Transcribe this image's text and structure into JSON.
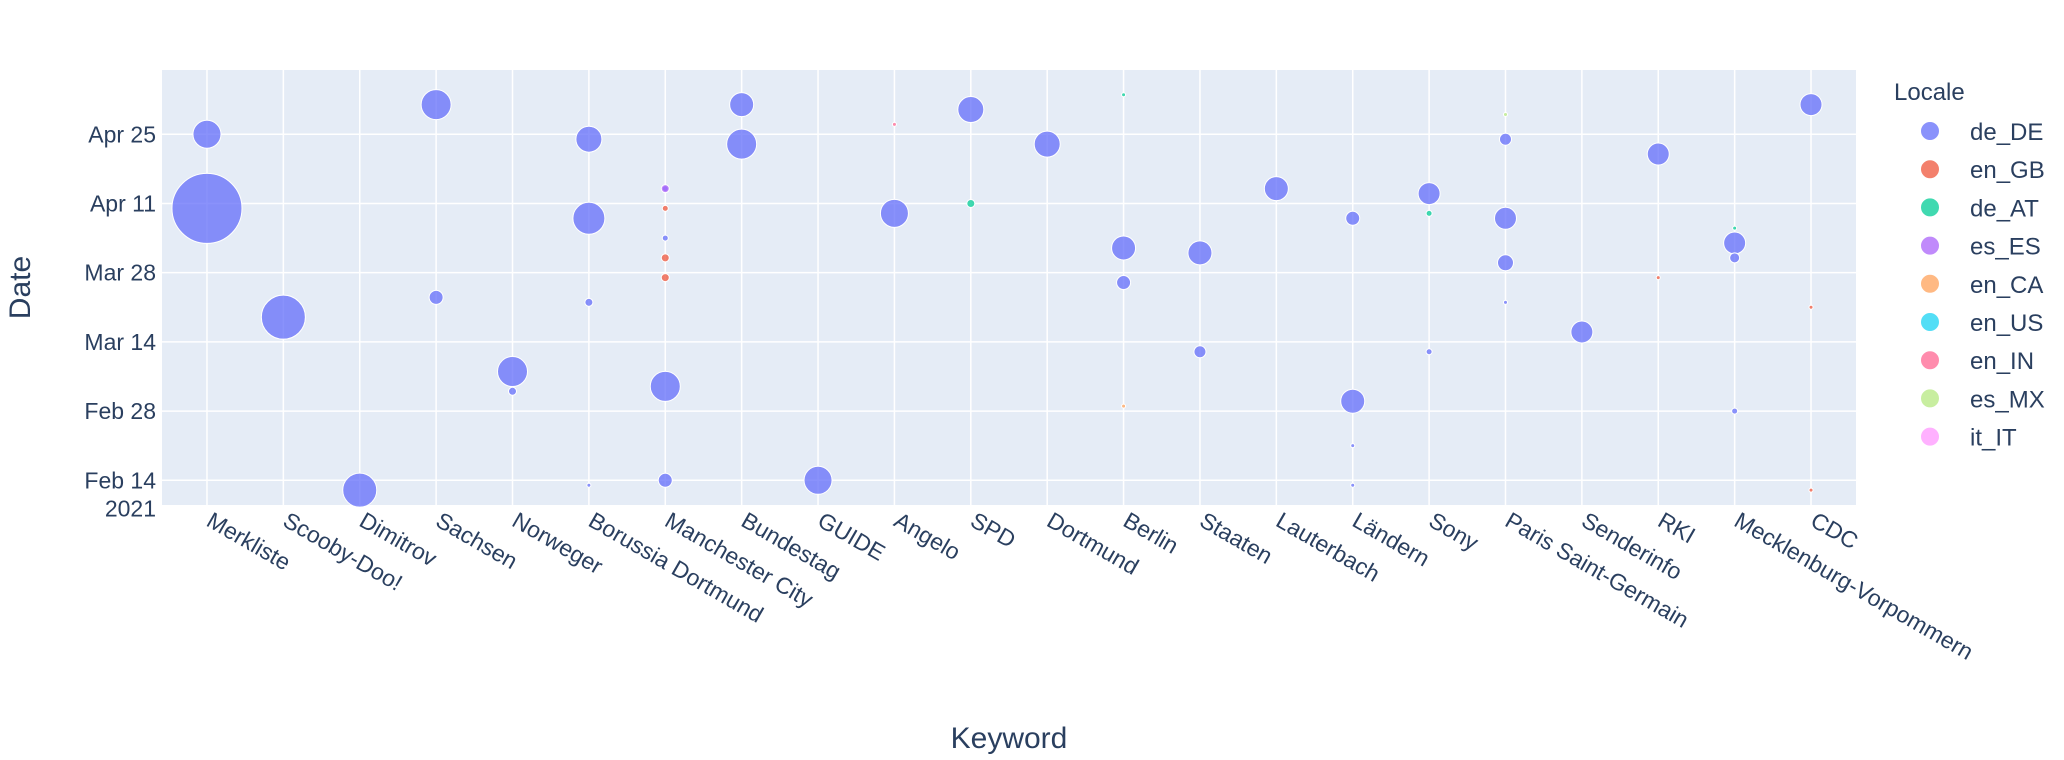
{
  "chart_data": {
    "type": "scatter",
    "subtype": "bubble",
    "xlabel": "Keyword",
    "ylabel": "Date",
    "categories": [
      "Merkliste",
      "Scooby-Doo!",
      "Dimitrov",
      "Sachsen",
      "Norweger",
      "Borussia Dortmund",
      "Manchester City",
      "Bundestag",
      "GUIDE",
      "Angelo",
      "SPD",
      "Dortmund",
      "Berlin",
      "Staaten",
      "Lauterbach",
      "Ländern",
      "Sony",
      "Paris Saint-Germain",
      "Senderinfo",
      "RKI",
      "Mecklenburg-Vorpommern",
      "CDC"
    ],
    "y_ticks": [
      {
        "date": "2021-02-14",
        "label": "Feb 14",
        "sublabel": "2021"
      },
      {
        "date": "2021-02-28",
        "label": "Feb 28",
        "sublabel": ""
      },
      {
        "date": "2021-03-14",
        "label": "Mar 14",
        "sublabel": ""
      },
      {
        "date": "2021-03-28",
        "label": "Mar 28",
        "sublabel": ""
      },
      {
        "date": "2021-04-11",
        "label": "Apr 11",
        "sublabel": ""
      },
      {
        "date": "2021-04-25",
        "label": "Apr 25",
        "sublabel": ""
      }
    ],
    "ylim": [
      "2021-02-09",
      "2021-05-08"
    ],
    "grid": true,
    "legend": {
      "title": "Locale",
      "placement": "right"
    },
    "series": [
      {
        "name": "de_DE",
        "color": "#636efa",
        "points": [
          {
            "x": "Merkliste",
            "y": "2021-04-25",
            "size": 14
          },
          {
            "x": "Merkliste",
            "y": "2021-04-10",
            "size": 35
          },
          {
            "x": "Scooby-Doo!",
            "y": "2021-03-19",
            "size": 22
          },
          {
            "x": "Dimitrov",
            "y": "2021-02-12",
            "size": 17
          },
          {
            "x": "Sachsen",
            "y": "2021-05-01",
            "size": 15
          },
          {
            "x": "Sachsen",
            "y": "2021-03-23",
            "size": 7
          },
          {
            "x": "Norweger",
            "y": "2021-03-08",
            "size": 15
          },
          {
            "x": "Norweger",
            "y": "2021-03-04",
            "size": 4
          },
          {
            "x": "Borussia Dortmund",
            "y": "2021-04-24",
            "size": 13
          },
          {
            "x": "Borussia Dortmund",
            "y": "2021-04-08",
            "size": 16
          },
          {
            "x": "Borussia Dortmund",
            "y": "2021-03-22",
            "size": 4
          },
          {
            "x": "Borussia Dortmund",
            "y": "2021-02-13",
            "size": 2
          },
          {
            "x": "Manchester City",
            "y": "2021-04-14",
            "size": 3
          },
          {
            "x": "Manchester City",
            "y": "2021-04-04",
            "size": 3
          },
          {
            "x": "Manchester City",
            "y": "2021-03-05",
            "size": 15
          },
          {
            "x": "Manchester City",
            "y": "2021-02-14",
            "size": 7
          },
          {
            "x": "Bundestag",
            "y": "2021-05-01",
            "size": 12
          },
          {
            "x": "Bundestag",
            "y": "2021-04-23",
            "size": 15
          },
          {
            "x": "GUIDE",
            "y": "2021-02-14",
            "size": 14
          },
          {
            "x": "Angelo",
            "y": "2021-04-09",
            "size": 14
          },
          {
            "x": "SPD",
            "y": "2021-04-30",
            "size": 13
          },
          {
            "x": "Dortmund",
            "y": "2021-04-23",
            "size": 13
          },
          {
            "x": "Berlin",
            "y": "2021-04-02",
            "size": 12
          },
          {
            "x": "Berlin",
            "y": "2021-03-26",
            "size": 7
          },
          {
            "x": "Staaten",
            "y": "2021-04-01",
            "size": 12
          },
          {
            "x": "Staaten",
            "y": "2021-03-12",
            "size": 6
          },
          {
            "x": "Lauterbach",
            "y": "2021-04-14",
            "size": 12
          },
          {
            "x": "Ländern",
            "y": "2021-04-08",
            "size": 7
          },
          {
            "x": "Ländern",
            "y": "2021-03-02",
            "size": 12
          },
          {
            "x": "Ländern",
            "y": "2021-02-21",
            "size": 2
          },
          {
            "x": "Ländern",
            "y": "2021-02-13",
            "size": 2
          },
          {
            "x": "Sony",
            "y": "2021-04-13",
            "size": 11
          },
          {
            "x": "Sony",
            "y": "2021-03-12",
            "size": 3
          },
          {
            "x": "Paris Saint-Germain",
            "y": "2021-04-24",
            "size": 6
          },
          {
            "x": "Paris Saint-Germain",
            "y": "2021-04-08",
            "size": 11
          },
          {
            "x": "Paris Saint-Germain",
            "y": "2021-03-30",
            "size": 8
          },
          {
            "x": "Paris Saint-Germain",
            "y": "2021-03-22",
            "size": 2
          },
          {
            "x": "Senderinfo",
            "y": "2021-03-16",
            "size": 11
          },
          {
            "x": "RKI",
            "y": "2021-04-21",
            "size": 11
          },
          {
            "x": "Mecklenburg-Vorpommern",
            "y": "2021-04-03",
            "size": 11
          },
          {
            "x": "Mecklenburg-Vorpommern",
            "y": "2021-03-31",
            "size": 5
          },
          {
            "x": "Mecklenburg-Vorpommern",
            "y": "2021-02-28",
            "size": 3
          },
          {
            "x": "CDC",
            "y": "2021-05-01",
            "size": 11
          }
        ]
      },
      {
        "name": "en_GB",
        "color": "#ef553b",
        "points": [
          {
            "x": "Manchester City",
            "y": "2021-04-10",
            "size": 3
          },
          {
            "x": "Manchester City",
            "y": "2021-03-31",
            "size": 4
          },
          {
            "x": "Manchester City",
            "y": "2021-03-27",
            "size": 4
          },
          {
            "x": "RKI",
            "y": "2021-03-27",
            "size": 2
          },
          {
            "x": "CDC",
            "y": "2021-03-21",
            "size": 2
          },
          {
            "x": "CDC",
            "y": "2021-02-12",
            "size": 2
          }
        ]
      },
      {
        "name": "de_AT",
        "color": "#00cc96",
        "points": [
          {
            "x": "SPD",
            "y": "2021-04-11",
            "size": 4
          },
          {
            "x": "Sony",
            "y": "2021-04-09",
            "size": 3
          },
          {
            "x": "Berlin",
            "y": "2021-05-03",
            "size": 2
          },
          {
            "x": "Mecklenburg-Vorpommern",
            "y": "2021-04-06",
            "size": 2
          }
        ]
      },
      {
        "name": "es_ES",
        "color": "#ab63fa",
        "points": [
          {
            "x": "Manchester City",
            "y": "2021-04-14",
            "size": 4
          }
        ]
      },
      {
        "name": "en_CA",
        "color": "#ffa15a",
        "points": [
          {
            "x": "Berlin",
            "y": "2021-03-01",
            "size": 2
          }
        ]
      },
      {
        "name": "en_US",
        "color": "#19d3f3",
        "points": []
      },
      {
        "name": "en_IN",
        "color": "#ff6692",
        "points": [
          {
            "x": "Angelo",
            "y": "2021-04-27",
            "size": 2
          }
        ]
      },
      {
        "name": "es_MX",
        "color": "#b6e880",
        "points": [
          {
            "x": "Paris Saint-Germain",
            "y": "2021-04-29",
            "size": 2
          }
        ]
      },
      {
        "name": "it_IT",
        "color": "#ff97ff",
        "points": []
      }
    ]
  }
}
